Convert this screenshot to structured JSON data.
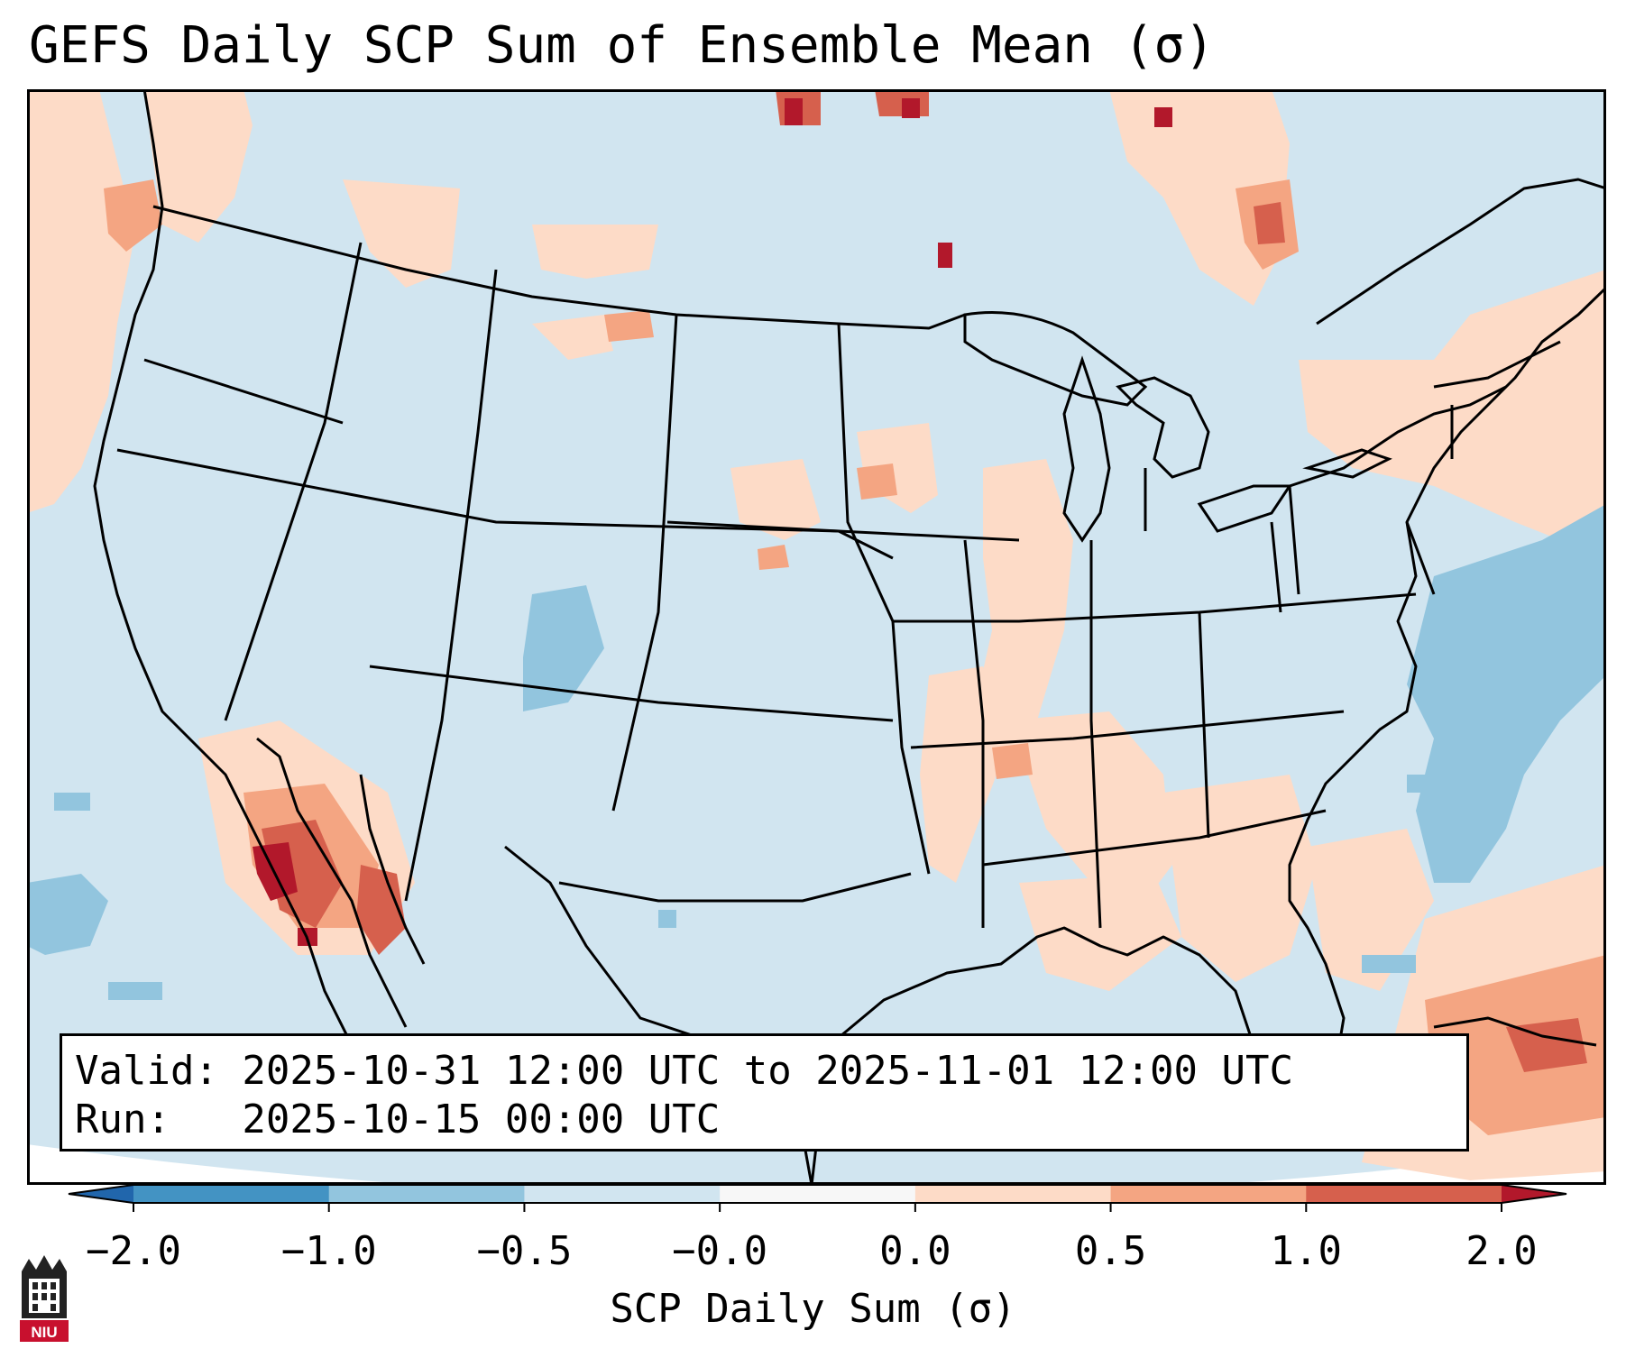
{
  "title": "GEFS Daily SCP Sum of Ensemble Mean (σ)",
  "info": {
    "valid_line": "Valid: 2025-10-31 12:00 UTC to 2025-11-01 12:00 UTC",
    "run_line": "Run:   2025-10-15 00:00 UTC"
  },
  "colorbar": {
    "label": "SCP Daily Sum (σ)",
    "ticks": [
      "−2.0",
      "−1.0",
      "−0.5",
      "−0.0",
      "0.0",
      "0.5",
      "1.0",
      "2.0"
    ],
    "bins": [
      {
        "range": "< -2.0",
        "color": "#2166ac"
      },
      {
        "range": "-2.0 to -1.0",
        "color": "#4393c3"
      },
      {
        "range": "-1.0 to -0.5",
        "color": "#92c5de"
      },
      {
        "range": "-0.5 to -0.0",
        "color": "#d1e5f0"
      },
      {
        "range": "-0.0 to 0.0",
        "color": "#f7f7f7"
      },
      {
        "range": "0.0 to 0.5",
        "color": "#fddbc7"
      },
      {
        "range": "0.5 to 1.0",
        "color": "#f4a582"
      },
      {
        "range": "1.0 to 2.0",
        "color": "#d6604d"
      },
      {
        "range": "> 2.0",
        "color": "#b2182b"
      }
    ]
  },
  "logo": {
    "text": "NIU",
    "color": "#c8102e"
  }
}
